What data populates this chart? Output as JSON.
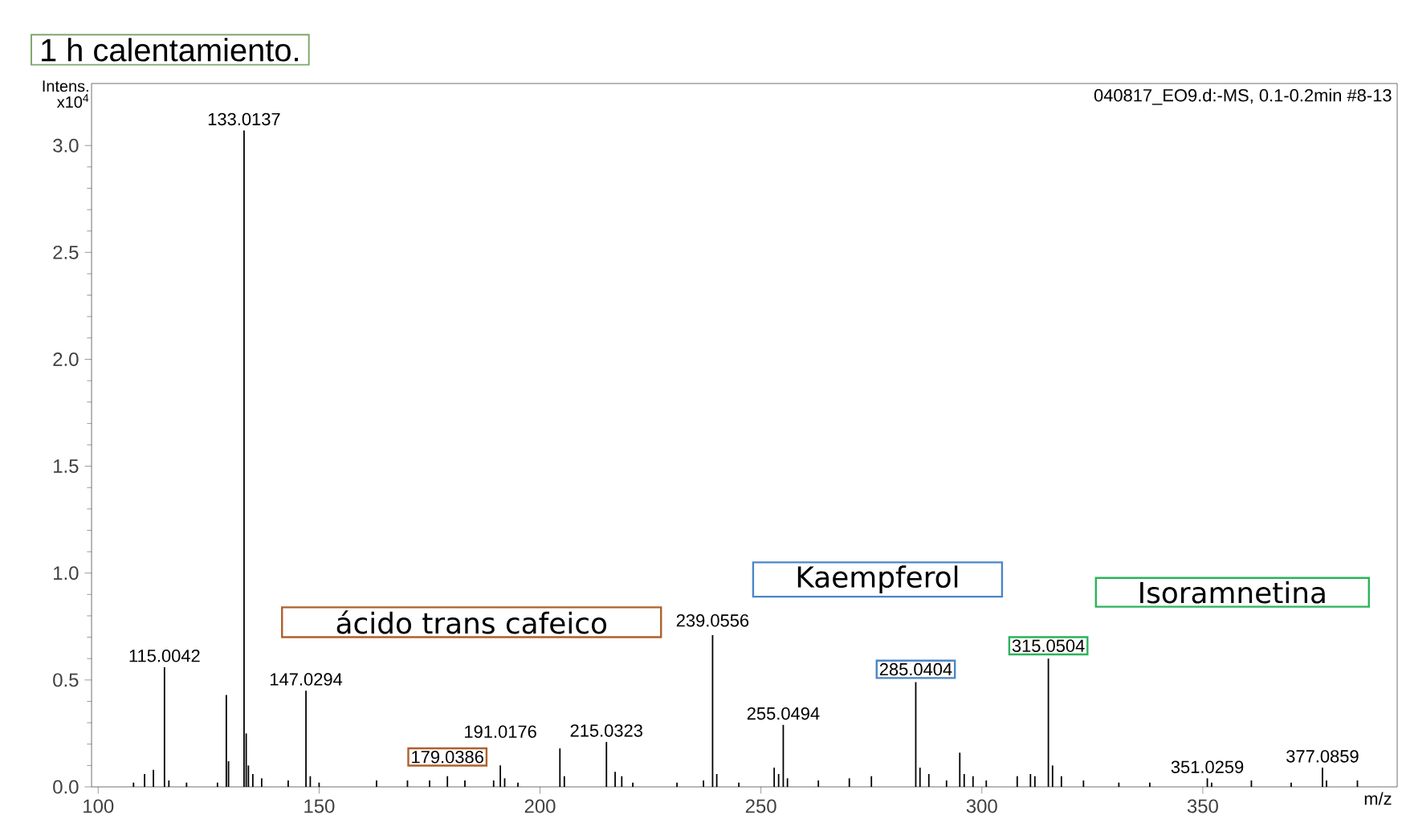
{
  "chart_data": {
    "type": "bar",
    "title": "1 h calentamiento.",
    "subtitle": "040817_EO9.d:-MS, 0.1-0.2min #8-13",
    "xlabel": "m/z",
    "ylabel": "Intens. x10$^{4}$",
    "x": [
      108,
      110.5,
      112.5,
      115.0042,
      116,
      120,
      127,
      129,
      129.5,
      133.0137,
      133.5,
      134,
      135,
      137,
      143,
      147.0294,
      148,
      150,
      163,
      170,
      175,
      179.0386,
      183,
      189.5,
      191.0176,
      192,
      195,
      204.5,
      205.5,
      215.0323,
      217,
      218.5,
      221,
      231,
      237,
      239.0556,
      240,
      245,
      253,
      254,
      255.0494,
      256,
      263,
      270,
      275,
      285.0404,
      286,
      288,
      292,
      295,
      296,
      298,
      301,
      308,
      311,
      312,
      315.0504,
      316,
      318,
      323,
      331,
      338,
      351.0259,
      352,
      361,
      370,
      377.0859,
      378,
      385
    ],
    "values": [
      0.02,
      0.06,
      0.08,
      0.56,
      0.03,
      0.02,
      0.02,
      0.43,
      0.12,
      3.07,
      0.25,
      0.1,
      0.06,
      0.04,
      0.03,
      0.45,
      0.05,
      0.02,
      0.03,
      0.03,
      0.03,
      0.05,
      0.03,
      0.03,
      0.1,
      0.04,
      0.02,
      0.18,
      0.05,
      0.21,
      0.07,
      0.05,
      0.02,
      0.02,
      0.03,
      0.71,
      0.06,
      0.02,
      0.09,
      0.06,
      0.29,
      0.04,
      0.03,
      0.04,
      0.05,
      0.49,
      0.09,
      0.06,
      0.03,
      0.16,
      0.06,
      0.05,
      0.03,
      0.05,
      0.06,
      0.05,
      0.6,
      0.1,
      0.05,
      0.03,
      0.02,
      0.02,
      0.04,
      0.02,
      0.03,
      0.02,
      0.09,
      0.03,
      0.03
    ],
    "color": "#000000",
    "xlim": [
      98.5,
      394
    ],
    "ylim": [
      0,
      3.29
    ],
    "xticks": [
      100,
      150,
      200,
      250,
      300,
      350
    ],
    "yticks": [
      {
        "value": 0,
        "label": "0.0"
      },
      {
        "value": 0.5,
        "label": "0.5"
      },
      {
        "value": 1,
        "label": "1.0"
      },
      {
        "value": 1.5,
        "label": "1.5"
      },
      {
        "value": 2,
        "label": "2.0"
      },
      {
        "value": 2.5,
        "label": "2.5"
      },
      {
        "value": 3,
        "label": "3.0"
      }
    ],
    "annotations": [
      {
        "text": "115.0042",
        "x": 115.0042,
        "y": 0.56
      },
      {
        "text": "133.0137",
        "x": 133.0137,
        "y": 3.07
      },
      {
        "text": "147.0294",
        "x": 147.0294,
        "y": 0.45
      },
      {
        "text": "179.0386",
        "x": 179.0386,
        "y": 0.05
      },
      {
        "text": "191.0176",
        "x": 191.0176,
        "y": 0.1
      },
      {
        "text": "215.0323",
        "x": 215.0323,
        "y": 0.21
      },
      {
        "text": "239.0556",
        "x": 239.0556,
        "y": 0.71
      },
      {
        "text": "255.0494",
        "x": 255.0494,
        "y": 0.29
      },
      {
        "text": "285.0404",
        "x": 285.0404,
        "y": 0.49
      },
      {
        "text": "315.0504",
        "x": 315.0504,
        "y": 0.6
      },
      {
        "text": "351.0259",
        "x": 351.0259,
        "y": 0.04
      },
      {
        "text": "377.0859",
        "x": 377.0859,
        "y": 0.09
      },
      "ácido trans cafeico",
      "Kaempferol",
      "Isoramnetina"
    ]
  }
}
